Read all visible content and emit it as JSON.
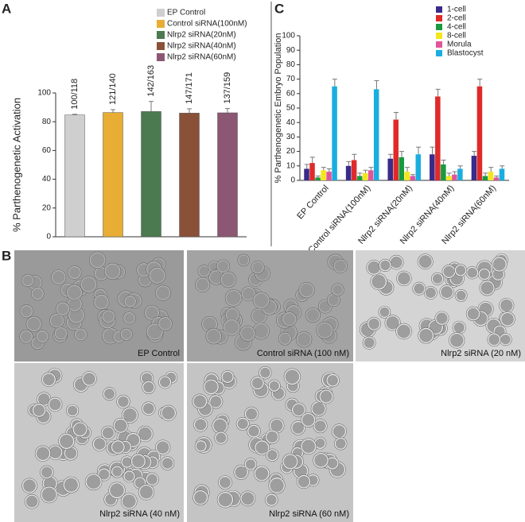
{
  "panel_labels": [
    "A",
    "B",
    "C"
  ],
  "chart_data": [
    {
      "type": "bar",
      "ylabel": "% Parthenogenetic Activation",
      "categories": [
        "EP Control",
        "Control siRNA(100nM)",
        "Nlrp2 siRNA(20nM)",
        "Nlrp2 siRNA(40nM)",
        "Nlrp2 siRNA(60nM)"
      ],
      "colors": [
        "#cfcfcf",
        "#e8ad34",
        "#4b7a50",
        "#8a5139",
        "#8c5773"
      ],
      "values": [
        84.7,
        86.4,
        87.1,
        86.0,
        86.2
      ],
      "errors": [
        0.5,
        2,
        7,
        3,
        3
      ],
      "value_labels": [
        "100/118",
        "121/140",
        "142/163",
        "147/171",
        "137/159"
      ],
      "ylim": [
        0,
        100
      ],
      "yticks": [
        0,
        20,
        40,
        60,
        80,
        100
      ]
    },
    {
      "type": "grouped_bar",
      "ylabel": "% Parthenogenetic Embryo Population",
      "categories": [
        "EP Control",
        "Control siRNA(100nM)",
        "Nlrp2 siRNA(20nM)",
        "Nlrp2 siRNA(40nM)",
        "Nlrp2 siRNA(60nM)"
      ],
      "series": [
        {
          "name": "1-cell",
          "color": "#3a2a8a",
          "values": [
            8,
            10,
            15,
            18,
            17
          ],
          "errors": [
            3,
            3,
            3,
            5,
            3
          ]
        },
        {
          "name": "2-cell",
          "color": "#e02a2a",
          "values": [
            12,
            14,
            42,
            58,
            65
          ],
          "errors": [
            4,
            4,
            5,
            5,
            5
          ]
        },
        {
          "name": "4-cell",
          "color": "#1a9a40",
          "values": [
            2,
            3,
            16,
            11,
            3
          ],
          "errors": [
            1,
            2,
            4,
            3,
            2
          ]
        },
        {
          "name": "8-cell",
          "color": "#f5e61a",
          "values": [
            7,
            5,
            6,
            3,
            6
          ],
          "errors": [
            2,
            2,
            3,
            2,
            3
          ]
        },
        {
          "name": "Morula",
          "color": "#e0559a",
          "values": [
            6,
            7,
            3,
            4,
            2
          ],
          "errors": [
            2,
            2,
            1,
            2,
            1
          ]
        },
        {
          "name": "Blastocyst",
          "color": "#1aaee0",
          "values": [
            65,
            63,
            18,
            8,
            8
          ],
          "errors": [
            5,
            6,
            5,
            2,
            2
          ]
        }
      ],
      "ylim": [
        0,
        100
      ],
      "yticks": [
        0,
        10,
        20,
        30,
        40,
        50,
        60,
        70,
        80,
        90,
        100
      ]
    }
  ],
  "micrographs": [
    "EP Control",
    "Control siRNA (100 nM)",
    "Nlrp2 siRNA (20 nM)",
    "Nlrp2 siRNA (40 nM)",
    "Nlrp2 siRNA (60 nM)"
  ]
}
